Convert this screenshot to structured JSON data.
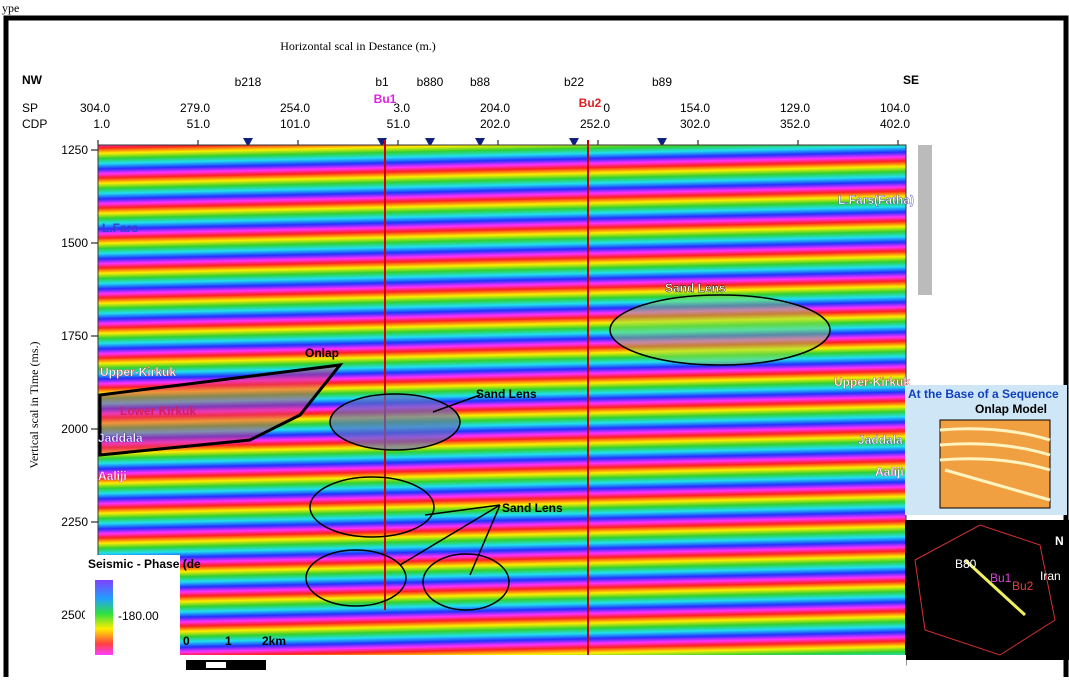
{
  "fragment": "ype",
  "header": {
    "horizontal_title": "Horizontal scal in Destance (m.)",
    "vertical_title": "Vertical scal in Time (ms.)",
    "left_direction": "NW",
    "right_direction": "SE",
    "sp_label": "SP",
    "cdp_label": "CDP"
  },
  "sp_ticks": [
    "304.0",
    "279.0",
    "254.0",
    "3.0",
    "204.0",
    "0",
    "154.0",
    "129.0",
    "104.0"
  ],
  "cdp_ticks": [
    "1.0",
    "51.0",
    "101.0",
    "51.0",
    "202.0",
    "252.0",
    "302.0",
    "352.0",
    "402.0"
  ],
  "wells": [
    "b218",
    "b1",
    "b880",
    "b88",
    "b22",
    "b89"
  ],
  "boreholes": [
    "Bu1",
    "Bu2"
  ],
  "time_ticks": [
    "1250",
    "1500",
    "1750",
    "2000",
    "2250",
    "2500"
  ],
  "horizons_left": [
    "L.Fars",
    "Upper-Kirkuk",
    "Lower Kirkuk",
    "Jaddala",
    "Aaliji"
  ],
  "horizons_right": [
    "L.Fars(Fatha)",
    "Upper-Kirkuk",
    "Jaddala",
    "Aaliji"
  ],
  "annotations": [
    "Onlap",
    "Sand Lens",
    "Sand Lens",
    "Sand Lens"
  ],
  "inset": {
    "title": "At the Base of a Sequence",
    "subtitle": "Onlap Model"
  },
  "legend": {
    "title": "Seismic - Phase (de",
    "value": "-180.00"
  },
  "scale": [
    "0",
    "1",
    "2km"
  ],
  "map": {
    "labels": [
      "B80",
      "Bu1",
      "Bu2",
      "Iran",
      "N"
    ]
  }
}
